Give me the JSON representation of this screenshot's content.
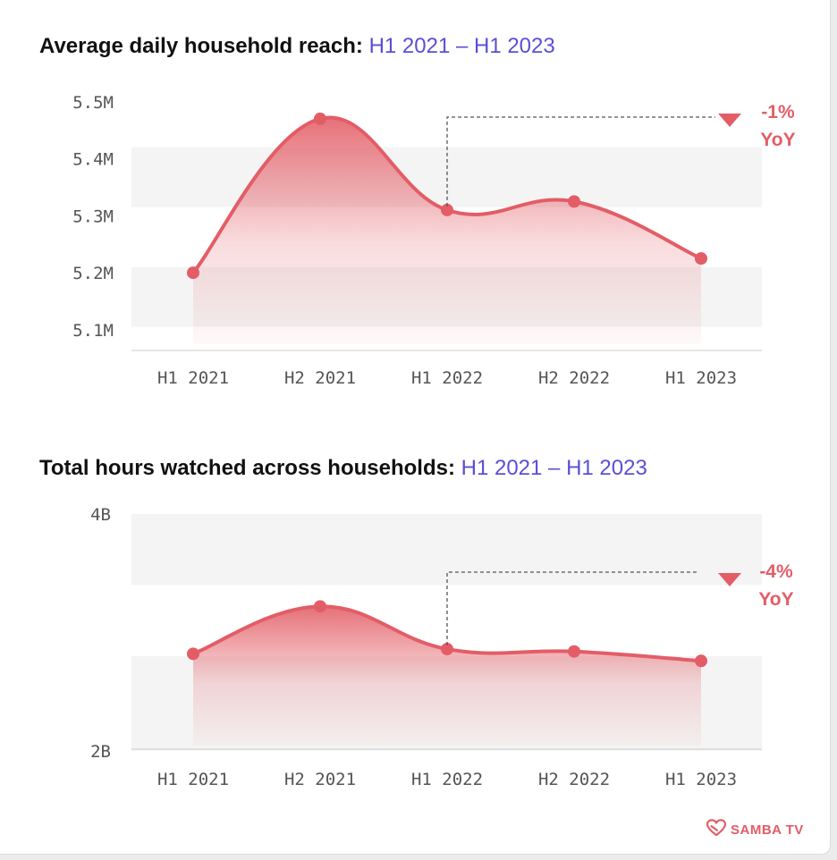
{
  "colors": {
    "line": "#e35d66",
    "accent_text": "#5a4fd6",
    "band": "#f4f4f4",
    "axis": "#cccccc"
  },
  "chart_data": [
    {
      "type": "area",
      "title": "Average daily household reach:",
      "period": "H1 2021 – H1 2023",
      "categories": [
        "H1 2021",
        "H2 2021",
        "H1 2022",
        "H2 2022",
        "H1 2023"
      ],
      "values": [
        5.2,
        5.47,
        5.31,
        5.325,
        5.225
      ],
      "ylim": [
        5.07,
        5.52
      ],
      "yticks": [
        5.1,
        5.2,
        5.3,
        5.4,
        5.5
      ],
      "ytick_labels": [
        "5.1M",
        "5.2M",
        "5.3M",
        "5.4M",
        "5.5M"
      ],
      "bands": [
        [
          5.42,
          5.315
        ],
        [
          5.21,
          5.105
        ]
      ],
      "annotation": {
        "change": "-1%",
        "label": "YoY",
        "from_index": 2,
        "direction": "down"
      },
      "grid": "alternating bands",
      "legend": "none"
    },
    {
      "type": "area",
      "title": "Total hours watched across households:",
      "period": "H1 2021 – H1 2023",
      "categories": [
        "H1 2021",
        "H2 2021",
        "H1 2022",
        "H2 2022",
        "H1 2023"
      ],
      "values": [
        2.82,
        3.22,
        2.86,
        2.84,
        2.76
      ],
      "ylim": [
        2.0,
        4.0
      ],
      "yticks": [
        2,
        4
      ],
      "ytick_labels": [
        "2B",
        "4B"
      ],
      "bands": [
        [
          4.0,
          3.4
        ],
        [
          2.8,
          2.0
        ]
      ],
      "annotation": {
        "change": "-4%",
        "label": "YoY",
        "from_index": 2,
        "direction": "down"
      },
      "grid": "alternating bands",
      "legend": "none"
    }
  ],
  "brand": {
    "name": "SAMBA TV",
    "icon": "heart-icon"
  }
}
